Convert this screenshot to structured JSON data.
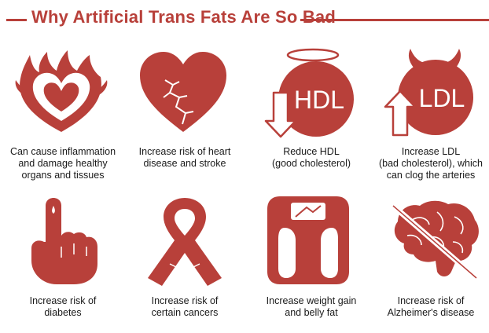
{
  "title": "Why Artificial Trans Fats Are So Bad",
  "colors": {
    "accent": "#b8403a",
    "light": "#ffffff",
    "text": "#1a1a1a"
  },
  "items": [
    {
      "icon": "flaming-heart-icon",
      "lines": [
        "Can cause inflammation",
        "and damage healthy",
        "organs and tissues"
      ]
    },
    {
      "icon": "cracked-heart-icon",
      "lines": [
        "Increase risk of heart",
        "disease and stroke"
      ]
    },
    {
      "icon": "hdl-angel-icon",
      "badge": "HDL",
      "lines": [
        "Reduce HDL",
        "(good cholesterol)"
      ]
    },
    {
      "icon": "ldl-devil-icon",
      "badge": "LDL",
      "lines": [
        "Increase LDL",
        "(bad cholesterol), which",
        "can clog the arteries"
      ]
    },
    {
      "icon": "finger-prick-icon",
      "lines": [
        "Increase risk of",
        "diabetes"
      ]
    },
    {
      "icon": "cancer-ribbon-icon",
      "lines": [
        "Increase risk of",
        "certain cancers"
      ]
    },
    {
      "icon": "bathroom-scale-icon",
      "lines": [
        "Increase weight gain",
        "and belly fat"
      ]
    },
    {
      "icon": "brain-icon",
      "lines": [
        "Increase risk of",
        "Alzheimer's disease"
      ]
    }
  ]
}
